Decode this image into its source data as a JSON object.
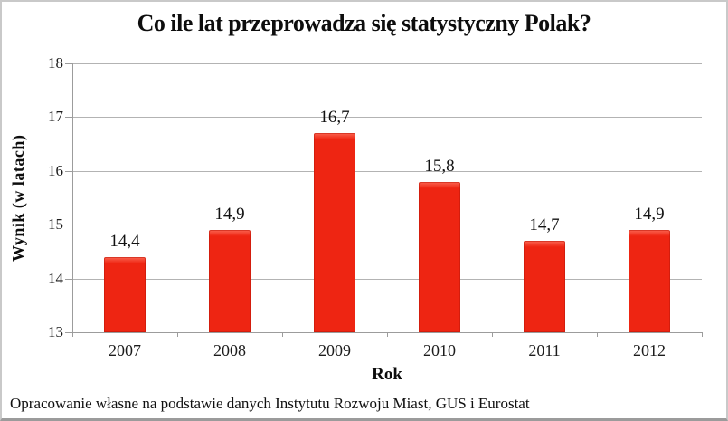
{
  "footer": {
    "text": "Opracowanie własne na podstawie danych Instytutu Rozwoju Miast, GUS i Eurostat"
  },
  "chart_data": {
    "type": "bar",
    "title": "Co ile lat przeprowadza się statystyczny Polak?",
    "categories": [
      "2007",
      "2008",
      "2009",
      "2010",
      "2011",
      "2012"
    ],
    "values": [
      14.4,
      14.9,
      16.7,
      15.8,
      14.7,
      14.9
    ],
    "value_labels": [
      "14,4",
      "14,9",
      "16,7",
      "15,8",
      "14,7",
      "14,9"
    ],
    "xlabel": "Rok",
    "ylabel": "Wynik (w latach)",
    "ylim": [
      13,
      18
    ],
    "yticks": [
      13,
      14,
      15,
      16,
      17,
      18
    ],
    "grid": true,
    "legend": false,
    "colors": {
      "bar": "#ee2512",
      "bar_highlight": "#fb6450",
      "bar_outline": "#c8200f",
      "gridline": "#b3b3b3",
      "axis": "#9c9c9c",
      "text": "#1c1c1c"
    }
  }
}
